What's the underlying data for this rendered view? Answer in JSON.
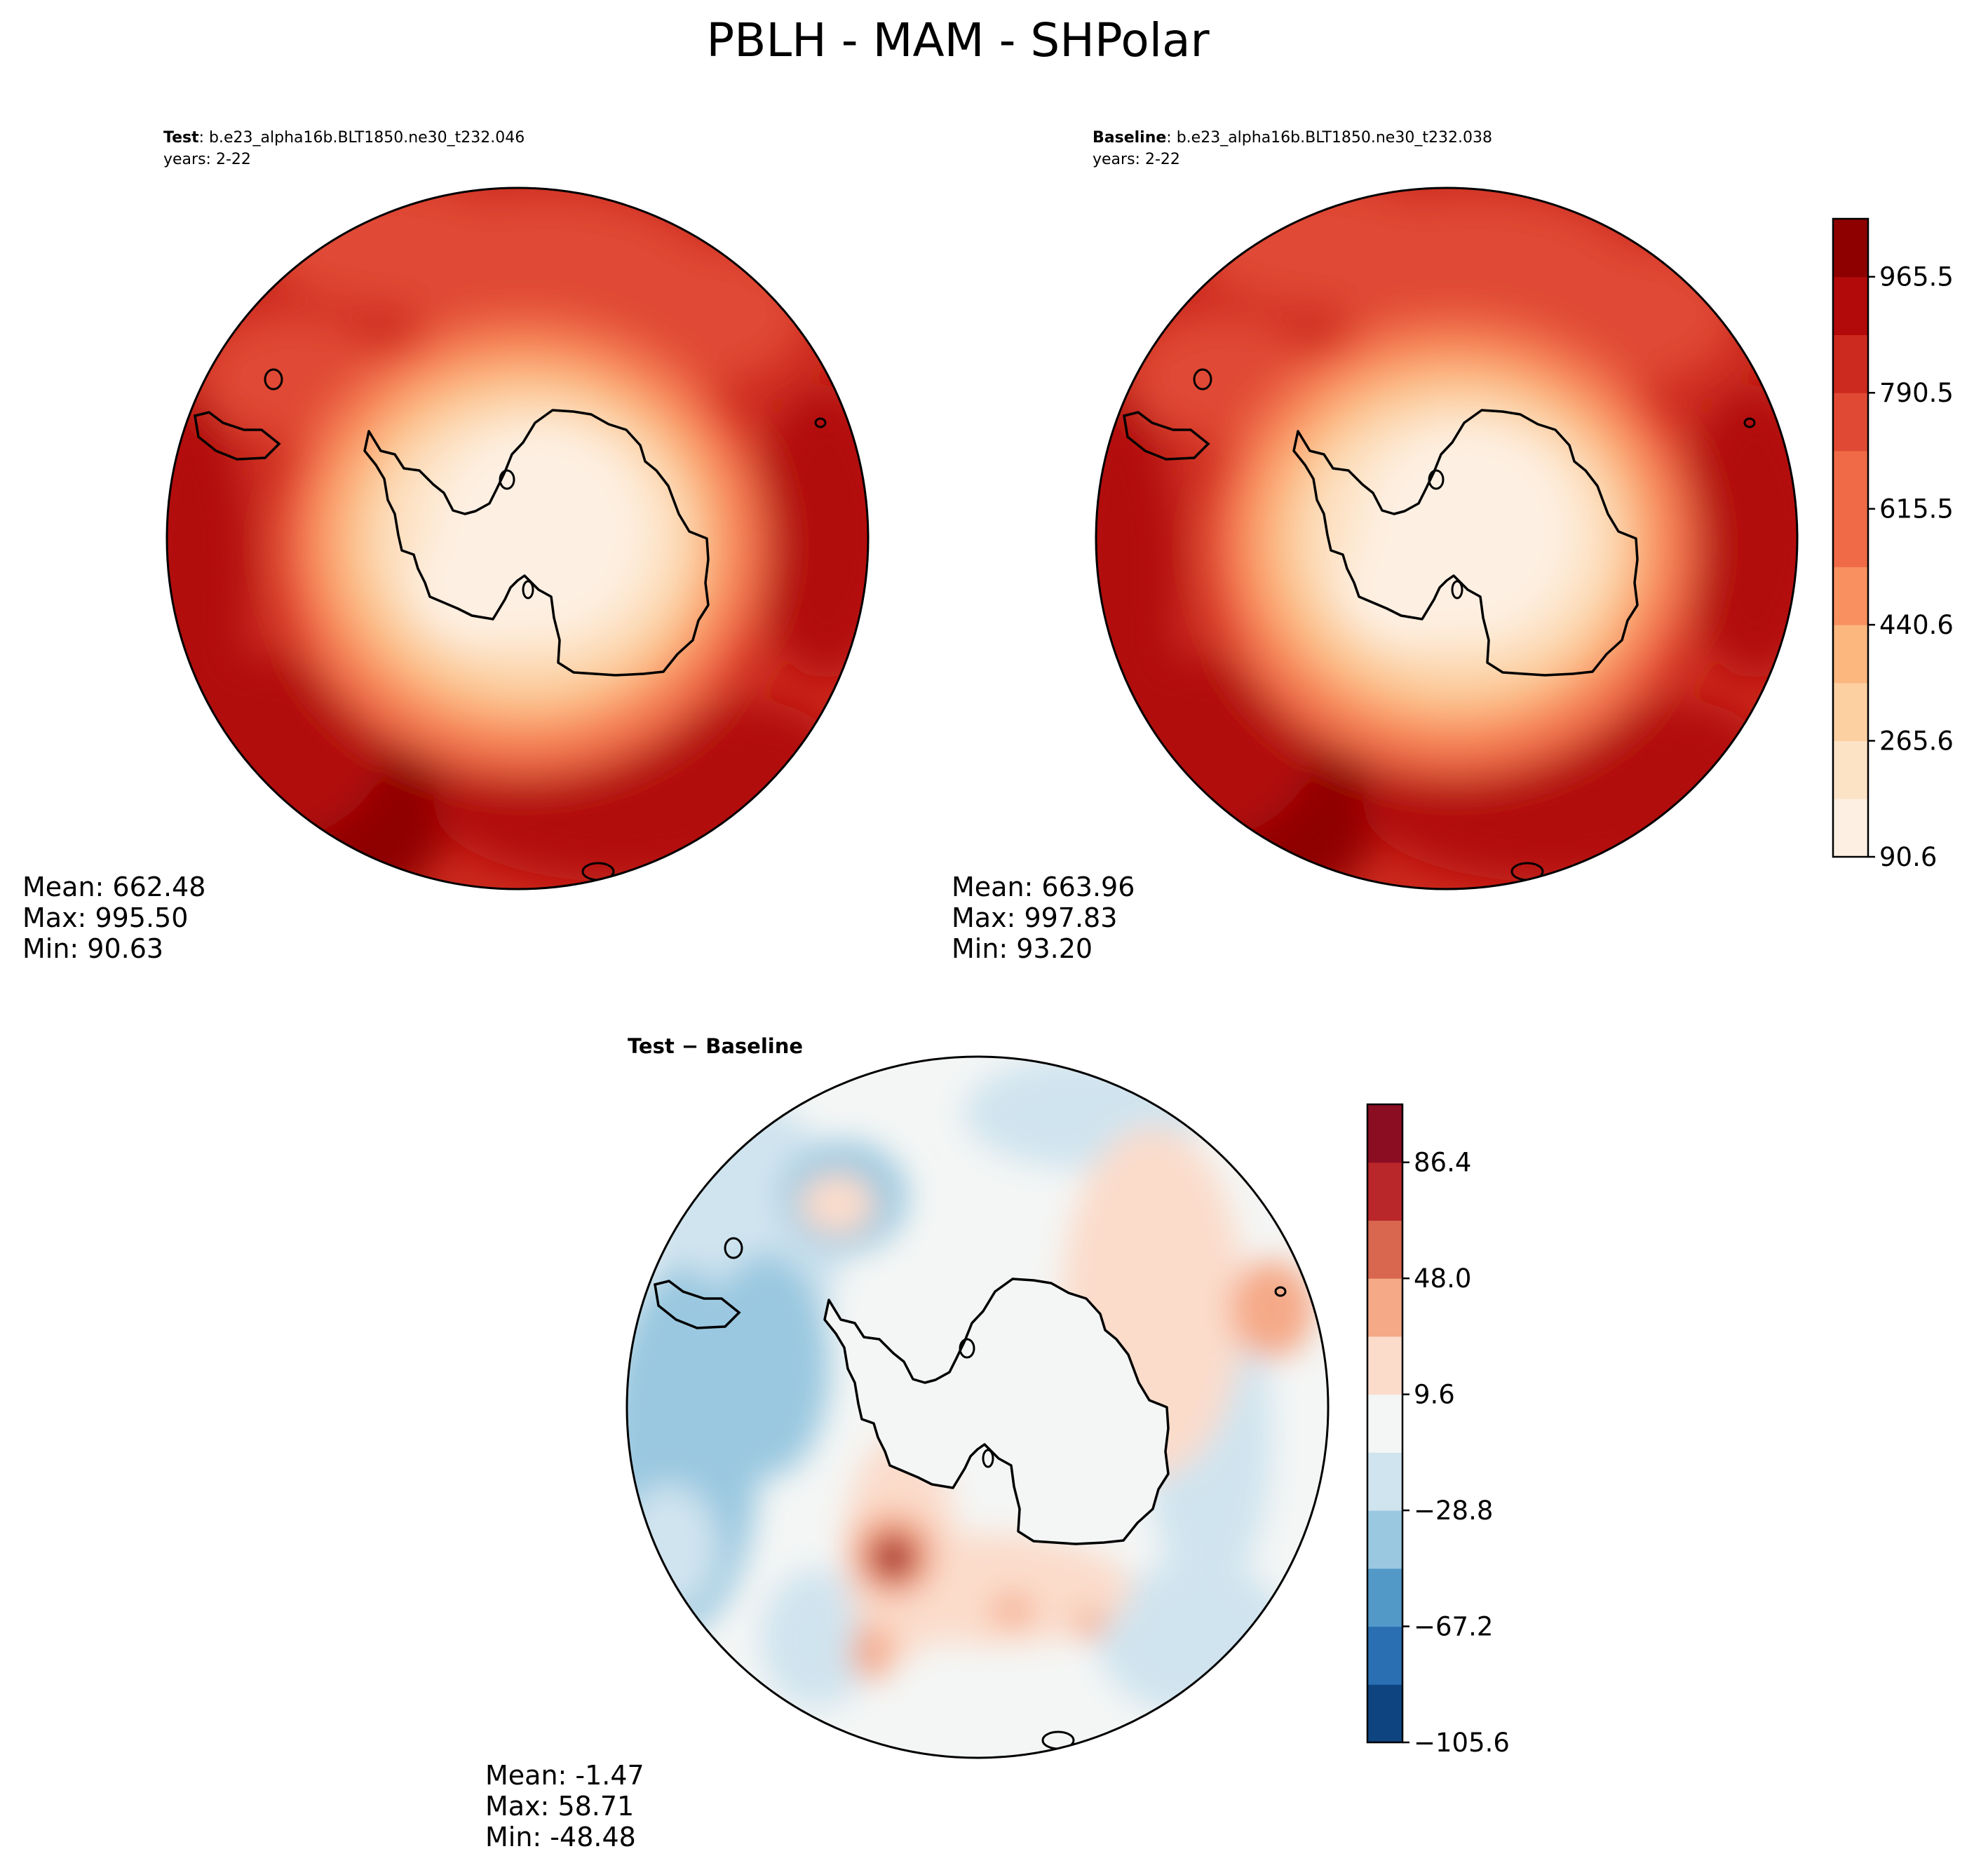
{
  "figure_title": "PBLH - MAM - SHPolar",
  "colors": {
    "land_outline": "#000000",
    "test_cmap": [
      "#fdf0e3",
      "#fde3c6",
      "#fcd0a1",
      "#fcb77f",
      "#f9905f",
      "#f06a47",
      "#e04a34",
      "#cc2a1e",
      "#b20a0a",
      "#8e0000"
    ],
    "diff_cmap": [
      "#0e4581",
      "#2a6fb1",
      "#5299c7",
      "#9ac8e0",
      "#d0e4ef",
      "#f4f6f5",
      "#fbdccb",
      "#f5a987",
      "#d9664e",
      "#b9272b",
      "#8a0d22"
    ]
  },
  "chart_data": [
    {
      "type": "contour-map",
      "name": "test",
      "title_bold": "Test",
      "title_text": ": b.e23_alpha16b.BLT1850.ne30_t232.046",
      "years": "years: 2-22",
      "stats": {
        "mean": "Mean: 662.48",
        "max": "Max: 995.50",
        "min": "Min: 90.63"
      },
      "value_range": [
        90.63,
        995.5
      ]
    },
    {
      "type": "contour-map",
      "name": "baseline",
      "title_bold": "Baseline",
      "title_text": ": b.e23_alpha16b.BLT1850.ne30_t232.038",
      "years": "years: 2-22",
      "stats": {
        "mean": "Mean: 663.96",
        "max": "Max: 997.83",
        "min": "Min: 93.20"
      },
      "value_range": [
        93.2,
        997.83
      ]
    },
    {
      "type": "contour-map",
      "name": "difference",
      "title": "Test − Baseline",
      "stats": {
        "mean": "Mean: -1.47",
        "max": "Max: 58.71",
        "min": "Min: -48.48"
      },
      "value_range": [
        -48.48,
        58.71
      ]
    }
  ],
  "colorbars": {
    "main": {
      "levels": [
        90.6,
        178.1,
        265.6,
        353.1,
        440.6,
        528.0,
        615.5,
        703.0,
        790.5,
        878.0,
        965.5,
        1053.0
      ],
      "tick_labels": [
        "90.6",
        "265.6",
        "440.6",
        "615.5",
        "790.5",
        "965.5"
      ]
    },
    "diff": {
      "levels": [
        -105.6,
        -86.4,
        -67.2,
        -48.0,
        -28.8,
        -9.6,
        9.6,
        28.8,
        48.0,
        67.2,
        86.4,
        105.6
      ],
      "tick_labels": [
        "−105.6",
        "−67.2",
        "−28.8",
        "9.6",
        "48.0",
        "86.4"
      ]
    }
  }
}
